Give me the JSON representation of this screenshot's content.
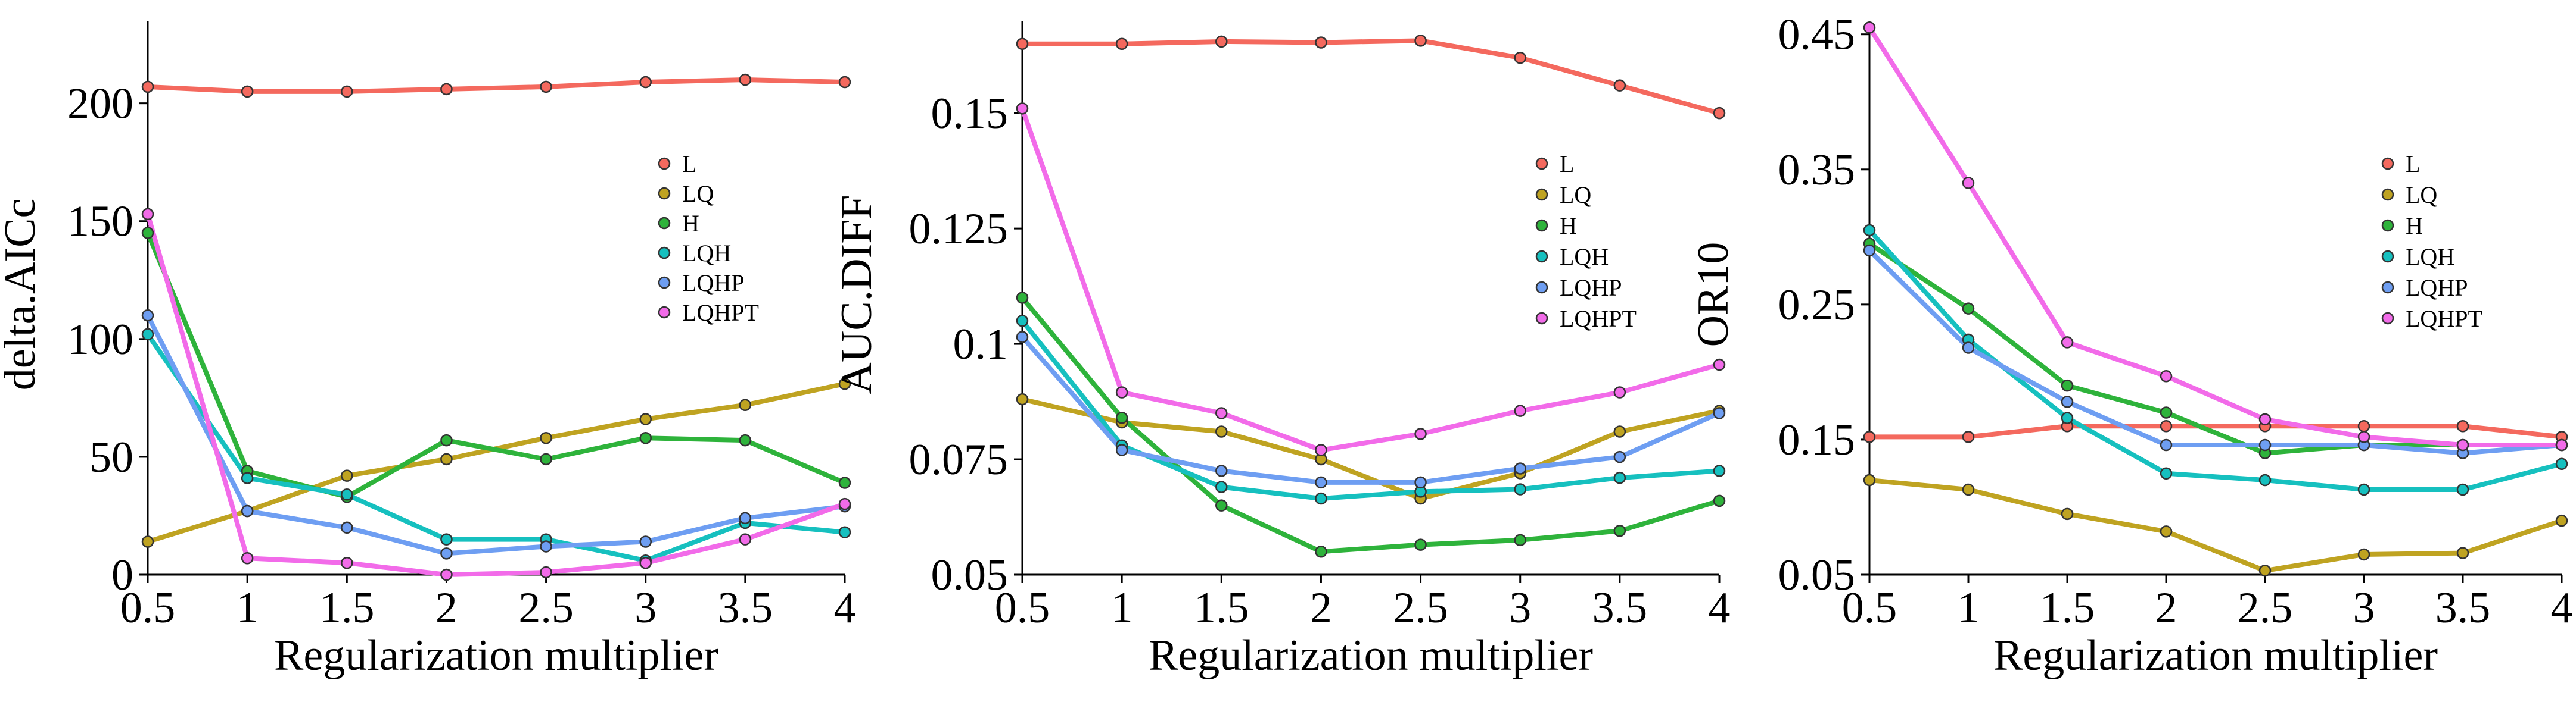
{
  "chart_data": [
    {
      "type": "line",
      "xlabel": "Regularization multiplier",
      "ylabel": "delta.AICc",
      "x": [
        0.5,
        1,
        1.5,
        2,
        2.5,
        3,
        3.5,
        4
      ],
      "x_tick_labels": [
        "0.5",
        "1",
        "1.5",
        "2",
        "2.5",
        "3",
        "3.5",
        "4"
      ],
      "ylim": [
        0,
        235
      ],
      "y_ticks": [
        0,
        50,
        100,
        150,
        200
      ],
      "y_tick_labels": [
        "0",
        "50",
        "100",
        "150",
        "200"
      ],
      "legend_position": "right",
      "series": [
        {
          "name": "L",
          "color": "#f4695e",
          "values": [
            207,
            205,
            205,
            206,
            207,
            209,
            210,
            209
          ]
        },
        {
          "name": "LQ",
          "color": "#bfa321",
          "values": [
            14,
            27,
            42,
            49,
            58,
            66,
            72,
            81
          ]
        },
        {
          "name": "H",
          "color": "#2eb33b",
          "values": [
            145,
            44,
            33,
            57,
            49,
            58,
            57,
            39
          ]
        },
        {
          "name": "LQH",
          "color": "#16c0bf",
          "values": [
            102,
            41,
            34,
            15,
            15,
            6,
            22,
            18
          ]
        },
        {
          "name": "LQHP",
          "color": "#6e9ef2",
          "values": [
            110,
            27,
            20,
            9,
            12,
            14,
            24,
            29
          ]
        },
        {
          "name": "LQHPT",
          "color": "#f26be9",
          "values": [
            153,
            7,
            5,
            0,
            1,
            5,
            15,
            30
          ]
        }
      ]
    },
    {
      "type": "line",
      "xlabel": "Regularization multiplier",
      "ylabel": "AUC.DIFF",
      "x": [
        0.5,
        1,
        1.5,
        2,
        2.5,
        3,
        3.5,
        4
      ],
      "x_tick_labels": [
        "0.5",
        "1",
        "1.5",
        "2",
        "2.5",
        "3",
        "3.5",
        "4"
      ],
      "ylim": [
        0.05,
        0.17
      ],
      "y_ticks": [
        0.05,
        0.075,
        0.1,
        0.125,
        0.15
      ],
      "y_tick_labels": [
        "0.05",
        "0.075",
        "0.1",
        "0.125",
        "0.15"
      ],
      "legend_position": "right",
      "series": [
        {
          "name": "L",
          "color": "#f4695e",
          "values": [
            0.165,
            0.165,
            0.1655,
            0.1653,
            0.1657,
            0.162,
            0.156,
            0.15
          ]
        },
        {
          "name": "LQ",
          "color": "#bfa321",
          "values": [
            0.088,
            0.083,
            0.081,
            0.075,
            0.0665,
            0.072,
            0.081,
            0.0855
          ]
        },
        {
          "name": "H",
          "color": "#2eb33b",
          "values": [
            0.11,
            0.084,
            0.065,
            0.055,
            0.0565,
            0.0575,
            0.0595,
            0.066
          ]
        },
        {
          "name": "LQH",
          "color": "#16c0bf",
          "values": [
            0.105,
            0.078,
            0.069,
            0.0665,
            0.068,
            0.0685,
            0.071,
            0.0725
          ]
        },
        {
          "name": "LQHP",
          "color": "#6e9ef2",
          "values": [
            0.1015,
            0.077,
            0.0725,
            0.07,
            0.07,
            0.073,
            0.0755,
            0.085
          ]
        },
        {
          "name": "LQHPT",
          "color": "#f26be9",
          "values": [
            0.151,
            0.0895,
            0.085,
            0.077,
            0.0805,
            0.0855,
            0.0895,
            0.0955
          ]
        }
      ]
    },
    {
      "type": "line",
      "xlabel": "Regularization multiplier",
      "ylabel": "OR10",
      "x": [
        0.5,
        1,
        1.5,
        2,
        2.5,
        3,
        3.5,
        4
      ],
      "x_tick_labels": [
        "0.5",
        "1",
        "1.5",
        "2",
        "2.5",
        "3",
        "3.5",
        "4"
      ],
      "ylim": [
        0.05,
        0.46
      ],
      "y_ticks": [
        0.05,
        0.15,
        0.25,
        0.35,
        0.45
      ],
      "y_tick_labels": [
        "0.05",
        "0.15",
        "0.25",
        "0.35",
        "0.45"
      ],
      "legend_position": "right",
      "series": [
        {
          "name": "L",
          "color": "#f4695e",
          "values": [
            0.152,
            0.152,
            0.16,
            0.16,
            0.16,
            0.16,
            0.16,
            0.152
          ]
        },
        {
          "name": "LQ",
          "color": "#bfa321",
          "values": [
            0.12,
            0.113,
            0.095,
            0.082,
            0.053,
            0.065,
            0.066,
            0.09
          ]
        },
        {
          "name": "H",
          "color": "#2eb33b",
          "values": [
            0.295,
            0.247,
            0.19,
            0.17,
            0.14,
            0.146,
            0.146,
            0.146
          ]
        },
        {
          "name": "LQH",
          "color": "#16c0bf",
          "values": [
            0.305,
            0.224,
            0.166,
            0.125,
            0.12,
            0.113,
            0.113,
            0.132
          ]
        },
        {
          "name": "LQHP",
          "color": "#6e9ef2",
          "values": [
            0.29,
            0.218,
            0.178,
            0.146,
            0.146,
            0.146,
            0.14,
            0.146
          ]
        },
        {
          "name": "LQHPT",
          "color": "#f26be9",
          "values": [
            0.455,
            0.34,
            0.222,
            0.197,
            0.165,
            0.152,
            0.146,
            0.146
          ]
        }
      ]
    }
  ]
}
